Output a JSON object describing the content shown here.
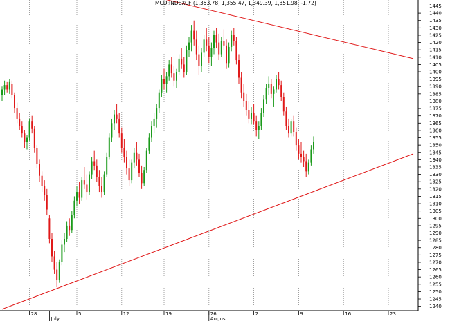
{
  "chart_data": {
    "type": "candlestick",
    "title": "MCD:INDEXCF (1,353.78, 1,355.47, 1,349.39, 1,351.98, -1.72)",
    "xlabel": "",
    "ylabel": "",
    "ylim": [
      1237,
      1449
    ],
    "y_ticks": [
      1240,
      1245,
      1250,
      1255,
      1260,
      1265,
      1270,
      1275,
      1280,
      1285,
      1290,
      1295,
      1300,
      1305,
      1310,
      1315,
      1320,
      1325,
      1330,
      1335,
      1340,
      1345,
      1350,
      1355,
      1360,
      1365,
      1370,
      1375,
      1380,
      1385,
      1390,
      1395,
      1400,
      1405,
      1410,
      1415,
      1420,
      1425,
      1430,
      1435,
      1440,
      1445
    ],
    "x_ticks_top": [
      "28",
      "5",
      "12",
      "19",
      "26",
      "2",
      "9",
      "16",
      "23"
    ],
    "x_ticks_month": [
      "July",
      "August"
    ],
    "grid": "vertical-dotted",
    "colors": {
      "up": "#1a9a1a",
      "down": "#e01818",
      "trendline": "#e01818",
      "grid": "#888888"
    },
    "trendlines": [
      {
        "name": "",
        "from": {
          "bar": 0,
          "value": 1238
        },
        "to": {
          "bar": 165,
          "value": 1344
        }
      },
      {
        "name": "",
        "from": {
          "bar": 59,
          "value": 1452
        },
        "to": {
          "bar": 165,
          "value": 1409
        }
      }
    ],
    "ohlc": [
      [
        1384,
        1390,
        1380,
        1388
      ],
      [
        1388,
        1394,
        1384,
        1391
      ],
      [
        1391,
        1393,
        1386,
        1388
      ],
      [
        1388,
        1395,
        1385,
        1393
      ],
      [
        1392,
        1394,
        1382,
        1384
      ],
      [
        1384,
        1386,
        1372,
        1375
      ],
      [
        1375,
        1379,
        1365,
        1368
      ],
      [
        1368,
        1372,
        1360,
        1363
      ],
      [
        1363,
        1366,
        1355,
        1358
      ],
      [
        1358,
        1360,
        1348,
        1352
      ],
      [
        1352,
        1357,
        1347,
        1355
      ],
      [
        1355,
        1368,
        1353,
        1366
      ],
      [
        1366,
        1370,
        1358,
        1361
      ],
      [
        1361,
        1363,
        1345,
        1348
      ],
      [
        1348,
        1350,
        1334,
        1337
      ],
      [
        1337,
        1340,
        1325,
        1329
      ],
      [
        1329,
        1332,
        1318,
        1322
      ],
      [
        1322,
        1326,
        1312,
        1316
      ],
      [
        1316,
        1320,
        1302,
        1306
      ],
      [
        1300,
        1302,
        1283,
        1286
      ],
      [
        1286,
        1290,
        1270,
        1274
      ],
      [
        1274,
        1278,
        1262,
        1265
      ],
      [
        1265,
        1270,
        1253,
        1258
      ],
      [
        1258,
        1272,
        1256,
        1270
      ],
      [
        1270,
        1285,
        1268,
        1282
      ],
      [
        1282,
        1290,
        1277,
        1286
      ],
      [
        1286,
        1298,
        1284,
        1295
      ],
      [
        1295,
        1300,
        1288,
        1292
      ],
      [
        1292,
        1305,
        1290,
        1302
      ],
      [
        1302,
        1315,
        1300,
        1312
      ],
      [
        1312,
        1322,
        1308,
        1318
      ],
      [
        1318,
        1325,
        1310,
        1314
      ],
      [
        1314,
        1328,
        1312,
        1326
      ],
      [
        1326,
        1335,
        1320,
        1323
      ],
      [
        1323,
        1330,
        1313,
        1318
      ],
      [
        1318,
        1332,
        1316,
        1330
      ],
      [
        1330,
        1342,
        1327,
        1339
      ],
      [
        1339,
        1346,
        1333,
        1336
      ],
      [
        1336,
        1340,
        1325,
        1328
      ],
      [
        1328,
        1333,
        1318,
        1322
      ],
      [
        1322,
        1328,
        1314,
        1318
      ],
      [
        1318,
        1332,
        1316,
        1330
      ],
      [
        1330,
        1345,
        1328,
        1342
      ],
      [
        1342,
        1358,
        1340,
        1355
      ],
      [
        1355,
        1368,
        1352,
        1365
      ],
      [
        1365,
        1374,
        1360,
        1371
      ],
      [
        1371,
        1378,
        1365,
        1368
      ],
      [
        1368,
        1372,
        1355,
        1358
      ],
      [
        1358,
        1362,
        1345,
        1348
      ],
      [
        1348,
        1354,
        1338,
        1342
      ],
      [
        1342,
        1346,
        1330,
        1334
      ],
      [
        1334,
        1340,
        1322,
        1326
      ],
      [
        1326,
        1340,
        1324,
        1338
      ],
      [
        1338,
        1348,
        1334,
        1345
      ],
      [
        1345,
        1352,
        1336,
        1340
      ],
      [
        1340,
        1344,
        1328,
        1331
      ],
      [
        1331,
        1336,
        1320,
        1324
      ],
      [
        1324,
        1335,
        1322,
        1333
      ],
      [
        1333,
        1348,
        1331,
        1346
      ],
      [
        1346,
        1358,
        1344,
        1355
      ],
      [
        1355,
        1366,
        1352,
        1363
      ],
      [
        1363,
        1372,
        1358,
        1368
      ],
      [
        1368,
        1378,
        1362,
        1375
      ],
      [
        1375,
        1388,
        1372,
        1386
      ],
      [
        1386,
        1398,
        1383,
        1395
      ],
      [
        1395,
        1402,
        1388,
        1392
      ],
      [
        1392,
        1400,
        1386,
        1397
      ],
      [
        1397,
        1408,
        1394,
        1405
      ],
      [
        1405,
        1410,
        1396,
        1399
      ],
      [
        1399,
        1404,
        1390,
        1394
      ],
      [
        1394,
        1402,
        1389,
        1400
      ],
      [
        1400,
        1412,
        1398,
        1409
      ],
      [
        1409,
        1416,
        1402,
        1405
      ],
      [
        1405,
        1410,
        1396,
        1400
      ],
      [
        1400,
        1418,
        1398,
        1415
      ],
      [
        1415,
        1424,
        1410,
        1420
      ],
      [
        1420,
        1432,
        1414,
        1428
      ],
      [
        1428,
        1435,
        1418,
        1422
      ],
      [
        1422,
        1428,
        1408,
        1412
      ],
      [
        1412,
        1418,
        1398,
        1404
      ],
      [
        1404,
        1416,
        1400,
        1413
      ],
      [
        1413,
        1425,
        1410,
        1422
      ],
      [
        1422,
        1430,
        1414,
        1418
      ],
      [
        1418,
        1424,
        1406,
        1410
      ],
      [
        1410,
        1420,
        1404,
        1416
      ],
      [
        1416,
        1428,
        1412,
        1425
      ],
      [
        1425,
        1430,
        1416,
        1420
      ],
      [
        1420,
        1426,
        1408,
        1412
      ],
      [
        1412,
        1424,
        1410,
        1421
      ],
      [
        1421,
        1429,
        1415,
        1418
      ],
      [
        1418,
        1422,
        1402,
        1406
      ],
      [
        1406,
        1420,
        1403,
        1417
      ],
      [
        1417,
        1428,
        1414,
        1425
      ],
      [
        1425,
        1430,
        1418,
        1421
      ],
      [
        1421,
        1424,
        1405,
        1408
      ],
      [
        1408,
        1412,
        1392,
        1396
      ],
      [
        1396,
        1400,
        1382,
        1386
      ],
      [
        1386,
        1392,
        1376,
        1380
      ],
      [
        1380,
        1385,
        1370,
        1374
      ],
      [
        1374,
        1380,
        1365,
        1368
      ],
      [
        1368,
        1376,
        1364,
        1372
      ],
      [
        1372,
        1378,
        1364,
        1366
      ],
      [
        1366,
        1370,
        1356,
        1360
      ],
      [
        1360,
        1366,
        1354,
        1363
      ],
      [
        1363,
        1375,
        1360,
        1372
      ],
      [
        1372,
        1384,
        1369,
        1381
      ],
      [
        1381,
        1392,
        1378,
        1389
      ],
      [
        1389,
        1397,
        1384,
        1392
      ],
      [
        1392,
        1395,
        1382,
        1385
      ],
      [
        1385,
        1390,
        1376,
        1388
      ],
      [
        1388,
        1398,
        1386,
        1395
      ],
      [
        1395,
        1400,
        1388,
        1391
      ],
      [
        1391,
        1394,
        1380,
        1383
      ],
      [
        1383,
        1386,
        1370,
        1373
      ],
      [
        1373,
        1376,
        1360,
        1363
      ],
      [
        1363,
        1368,
        1355,
        1358
      ],
      [
        1358,
        1368,
        1356,
        1366
      ],
      [
        1366,
        1370,
        1356,
        1359
      ],
      [
        1359,
        1362,
        1346,
        1350
      ],
      [
        1350,
        1354,
        1340,
        1344
      ],
      [
        1344,
        1352,
        1338,
        1342
      ],
      [
        1342,
        1346,
        1335,
        1339
      ],
      [
        1339,
        1344,
        1328,
        1332
      ],
      [
        1332,
        1340,
        1330,
        1338
      ],
      [
        1338,
        1350,
        1336,
        1347
      ],
      [
        1347,
        1356,
        1344,
        1352
      ]
    ]
  }
}
